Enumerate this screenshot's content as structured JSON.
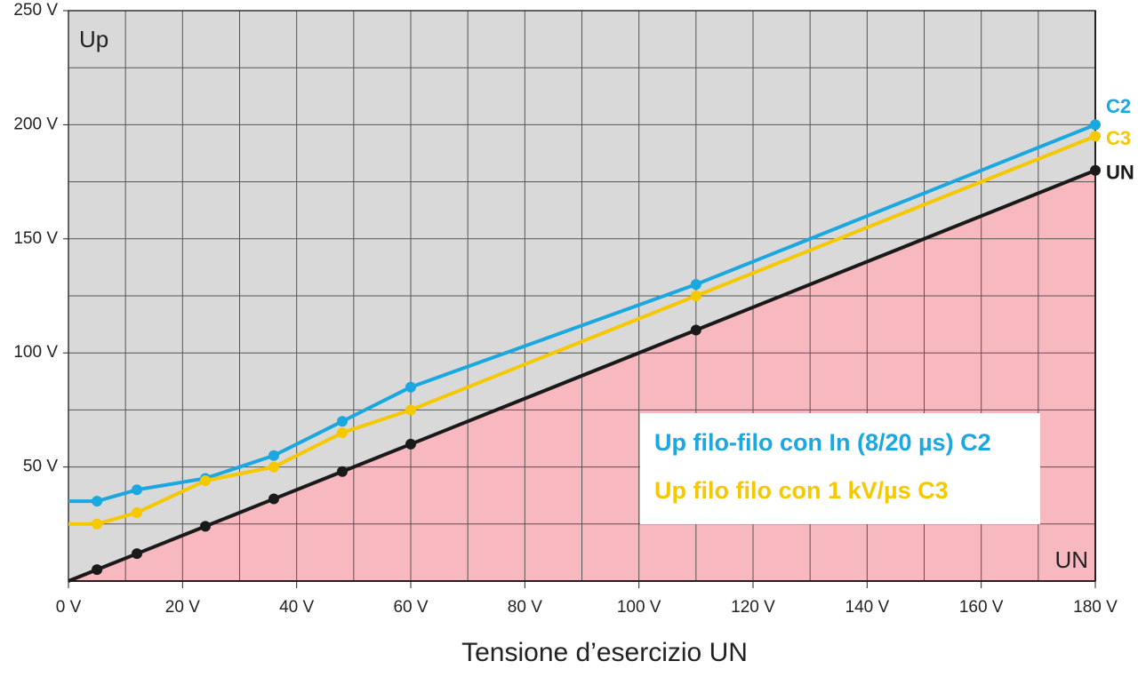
{
  "chart_data": {
    "type": "line",
    "x_label": "Tensione d’esercizio UN",
    "y_corner_label": "Up",
    "x_corner_label": "UN",
    "xlim": [
      0,
      180
    ],
    "ylim": [
      0,
      250
    ],
    "xticks": [
      {
        "value": 0,
        "label": "0 V"
      },
      {
        "value": 20,
        "label": "20 V"
      },
      {
        "value": 40,
        "label": "40 V"
      },
      {
        "value": 60,
        "label": "60 V"
      },
      {
        "value": 80,
        "label": "80 V"
      },
      {
        "value": 100,
        "label": "100 V"
      },
      {
        "value": 120,
        "label": "120 V"
      },
      {
        "value": 140,
        "label": "140 V"
      },
      {
        "value": 160,
        "label": "160 V"
      },
      {
        "value": 180,
        "label": "180 V"
      }
    ],
    "yticks": [
      {
        "value": 50,
        "label": "50 V"
      },
      {
        "value": 100,
        "label": "100 V"
      },
      {
        "value": 150,
        "label": "150 V"
      },
      {
        "value": 200,
        "label": "200 V"
      },
      {
        "value": 250,
        "label": "250 V"
      }
    ],
    "xgrid": [
      10,
      20,
      30,
      40,
      50,
      60,
      70,
      80,
      90,
      100,
      110,
      120,
      130,
      140,
      150,
      160,
      170
    ],
    "ygrid": [
      25,
      50,
      75,
      100,
      125,
      150,
      175,
      200,
      225
    ],
    "grid": true,
    "background": "#d9d9d9",
    "area_color": "#f7b9bf",
    "series": [
      {
        "name": "Up filo-filo con In (8/20 µs) C2",
        "end_label": "C2",
        "color": "#1ba7e0",
        "x": [
          0,
          5,
          12,
          24,
          36,
          48,
          60,
          110,
          180
        ],
        "values": [
          35,
          35,
          40,
          45,
          55,
          70,
          85,
          130,
          200
        ]
      },
      {
        "name": "Up filo filo con 1 kV/µs C3",
        "end_label": "C3",
        "color": "#f5c800",
        "x": [
          0,
          5,
          12,
          24,
          36,
          48,
          60,
          110,
          180
        ],
        "values": [
          25,
          25,
          30,
          44,
          50,
          65,
          75,
          125,
          195
        ]
      },
      {
        "end_label": "UN",
        "color": "#1a1a1a",
        "fill_below": true,
        "x": [
          0,
          5,
          12,
          24,
          36,
          48,
          60,
          110,
          180
        ],
        "values": [
          0,
          5,
          12,
          24,
          36,
          48,
          60,
          110,
          180
        ]
      }
    ]
  }
}
